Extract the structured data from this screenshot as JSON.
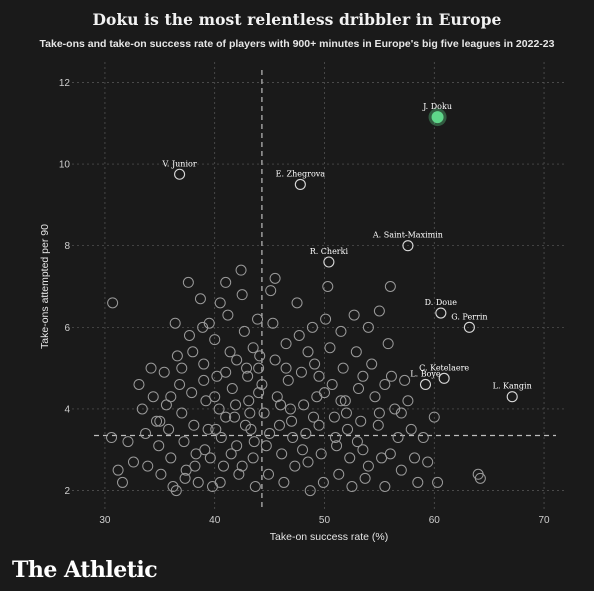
{
  "header": {
    "title": "Doku is the most relentless dribbler in Europe",
    "subtitle": "Take-ons and take-on success rate of players with 900+ minutes in Europe's big five leagues in 2022-23"
  },
  "brand": {
    "logo_text": "The Athletic"
  },
  "colors": {
    "background": "#1a1a1a",
    "highlight": "#5fd68a",
    "point_stroke": "#9a9a9a",
    "grid": "#5a5a5a",
    "reference_line": "#bdbdbd"
  },
  "chart_data": {
    "type": "scatter",
    "title": "Doku is the most relentless dribbler in Europe",
    "subtitle": "Take-ons and take-on success rate of players with 900+ minutes in Europe's big five leagues in 2022-23",
    "xlabel": "Take-on success rate (%)",
    "ylabel": "Take-ons attempted per 90",
    "xlim": [
      27,
      72
    ],
    "ylim": [
      1.5,
      12.5
    ],
    "xticks": [
      30,
      40,
      50,
      60,
      70
    ],
    "yticks": [
      2,
      4,
      6,
      8,
      10,
      12
    ],
    "grid": true,
    "reference_lines": {
      "x": 44.3,
      "y": 3.35
    },
    "labeled_points": [
      {
        "name": "J. Doku",
        "x": 60.3,
        "y": 11.15,
        "highlight": true
      },
      {
        "name": "V. Junior",
        "x": 36.8,
        "y": 9.75
      },
      {
        "name": "E. Zhegrova",
        "x": 47.8,
        "y": 9.5
      },
      {
        "name": "A. Saint-Maximin",
        "x": 57.6,
        "y": 8.0
      },
      {
        "name": "R. Cherki",
        "x": 50.4,
        "y": 7.6
      },
      {
        "name": "D. Doue",
        "x": 60.6,
        "y": 6.35
      },
      {
        "name": "G. Perrin",
        "x": 63.2,
        "y": 6.0
      },
      {
        "name": "C. Ketelaere",
        "x": 60.9,
        "y": 4.75
      },
      {
        "name": "L. Boye",
        "x": 59.2,
        "y": 4.6
      },
      {
        "name": "L. Kangin",
        "x": 67.1,
        "y": 4.3
      }
    ],
    "points": [
      [
        30.7,
        6.6
      ],
      [
        30.6,
        3.3
      ],
      [
        31.2,
        2.5
      ],
      [
        32.1,
        3.2
      ],
      [
        31.6,
        2.2
      ],
      [
        32.6,
        2.7
      ],
      [
        33.1,
        4.6
      ],
      [
        33.4,
        4.0
      ],
      [
        33.7,
        3.4
      ],
      [
        33.9,
        2.6
      ],
      [
        34.2,
        5.0
      ],
      [
        34.4,
        4.3
      ],
      [
        34.7,
        3.7
      ],
      [
        34.9,
        3.1
      ],
      [
        35.1,
        2.4
      ],
      [
        35.4,
        4.9
      ],
      [
        35.6,
        4.1
      ],
      [
        35.8,
        3.5
      ],
      [
        36.0,
        2.8
      ],
      [
        36.2,
        2.1
      ],
      [
        36.4,
        6.1
      ],
      [
        36.6,
        5.3
      ],
      [
        36.8,
        4.6
      ],
      [
        37.0,
        3.9
      ],
      [
        37.2,
        3.2
      ],
      [
        37.4,
        2.5
      ],
      [
        37.6,
        7.1
      ],
      [
        37.7,
        5.8
      ],
      [
        37.9,
        4.4
      ],
      [
        38.1,
        3.6
      ],
      [
        38.3,
        2.9
      ],
      [
        38.5,
        2.2
      ],
      [
        38.7,
        6.7
      ],
      [
        38.9,
        6.0
      ],
      [
        39.0,
        5.1
      ],
      [
        39.2,
        4.2
      ],
      [
        39.4,
        3.5
      ],
      [
        39.6,
        2.8
      ],
      [
        39.8,
        2.1
      ],
      [
        40.0,
        5.7
      ],
      [
        40.2,
        4.8
      ],
      [
        40.4,
        4.0
      ],
      [
        40.6,
        3.3
      ],
      [
        40.8,
        2.6
      ],
      [
        41.0,
        7.1
      ],
      [
        41.2,
        6.3
      ],
      [
        41.4,
        5.4
      ],
      [
        41.6,
        4.5
      ],
      [
        41.8,
        3.8
      ],
      [
        42.0,
        3.1
      ],
      [
        42.2,
        2.4
      ],
      [
        42.4,
        7.4
      ],
      [
        42.5,
        6.8
      ],
      [
        42.7,
        5.9
      ],
      [
        42.9,
        5.0
      ],
      [
        43.1,
        4.2
      ],
      [
        43.3,
        3.5
      ],
      [
        43.5,
        2.8
      ],
      [
        43.7,
        2.1
      ],
      [
        43.9,
        6.2
      ],
      [
        44.1,
        5.3
      ],
      [
        44.3,
        4.6
      ],
      [
        44.5,
        3.9
      ],
      [
        44.7,
        3.1
      ],
      [
        44.9,
        2.4
      ],
      [
        45.1,
        6.9
      ],
      [
        45.3,
        6.1
      ],
      [
        45.5,
        5.2
      ],
      [
        45.7,
        4.3
      ],
      [
        45.9,
        3.6
      ],
      [
        46.1,
        2.9
      ],
      [
        46.3,
        2.2
      ],
      [
        45.5,
        7.2
      ],
      [
        46.5,
        5.6
      ],
      [
        46.7,
        4.7
      ],
      [
        46.9,
        4.0
      ],
      [
        47.1,
        3.3
      ],
      [
        47.3,
        2.6
      ],
      [
        47.5,
        6.6
      ],
      [
        47.7,
        5.8
      ],
      [
        47.9,
        4.9
      ],
      [
        48.1,
        4.1
      ],
      [
        48.3,
        3.4
      ],
      [
        48.5,
        2.7
      ],
      [
        48.7,
        2.0
      ],
      [
        48.9,
        6.0
      ],
      [
        49.1,
        5.1
      ],
      [
        49.3,
        4.3
      ],
      [
        49.5,
        3.6
      ],
      [
        49.7,
        2.9
      ],
      [
        49.9,
        2.2
      ],
      [
        50.1,
        6.2
      ],
      [
        50.3,
        7.0
      ],
      [
        50.5,
        5.5
      ],
      [
        50.7,
        4.6
      ],
      [
        50.9,
        3.8
      ],
      [
        51.1,
        3.1
      ],
      [
        51.3,
        2.4
      ],
      [
        51.5,
        5.9
      ],
      [
        51.7,
        5.0
      ],
      [
        51.9,
        4.2
      ],
      [
        52.1,
        3.5
      ],
      [
        52.3,
        2.8
      ],
      [
        52.5,
        2.1
      ],
      [
        52.7,
        6.3
      ],
      [
        52.9,
        5.4
      ],
      [
        53.1,
        4.5
      ],
      [
        53.3,
        3.7
      ],
      [
        53.5,
        3.0
      ],
      [
        53.7,
        2.3
      ],
      [
        54.0,
        6.0
      ],
      [
        54.3,
        5.1
      ],
      [
        54.6,
        4.3
      ],
      [
        54.9,
        3.6
      ],
      [
        55.2,
        2.8
      ],
      [
        55.5,
        2.1
      ],
      [
        55.8,
        5.6
      ],
      [
        56.1,
        4.8
      ],
      [
        56.4,
        4.0
      ],
      [
        56.7,
        3.3
      ],
      [
        57.0,
        2.5
      ],
      [
        57.3,
        4.7
      ],
      [
        57.6,
        4.2
      ],
      [
        57.9,
        3.5
      ],
      [
        58.2,
        2.8
      ],
      [
        58.5,
        2.2
      ],
      [
        59.0,
        3.3
      ],
      [
        59.4,
        2.7
      ],
      [
        60.0,
        3.8
      ],
      [
        60.3,
        2.2
      ],
      [
        64.0,
        2.4
      ],
      [
        64.2,
        2.3
      ],
      [
        56.0,
        7.0
      ],
      [
        55.0,
        6.4
      ],
      [
        36.5,
        2.0
      ],
      [
        37.3,
        2.3
      ],
      [
        38.2,
        2.6
      ],
      [
        39.1,
        3.0
      ],
      [
        40.1,
        3.5
      ],
      [
        41.0,
        3.8
      ],
      [
        41.9,
        4.1
      ],
      [
        42.8,
        3.6
      ],
      [
        43.6,
        3.2
      ],
      [
        40.5,
        2.2
      ],
      [
        41.5,
        2.9
      ],
      [
        42.5,
        2.6
      ],
      [
        43.2,
        3.9
      ],
      [
        44.0,
        4.4
      ],
      [
        45.0,
        3.4
      ],
      [
        46.0,
        4.1
      ],
      [
        47.0,
        3.7
      ],
      [
        48.0,
        3.0
      ],
      [
        49.0,
        3.8
      ],
      [
        50.0,
        4.4
      ],
      [
        51.0,
        3.3
      ],
      [
        52.0,
        3.9
      ],
      [
        53.0,
        3.2
      ],
      [
        54.0,
        2.6
      ],
      [
        55.0,
        3.9
      ],
      [
        56.0,
        2.9
      ],
      [
        35.0,
        3.7
      ],
      [
        36.0,
        4.3
      ],
      [
        37.0,
        5.0
      ],
      [
        38.0,
        5.4
      ],
      [
        39.0,
        4.7
      ],
      [
        40.0,
        4.3
      ],
      [
        41.0,
        4.9
      ],
      [
        42.0,
        5.2
      ],
      [
        43.0,
        4.8
      ],
      [
        44.0,
        5.0
      ],
      [
        39.5,
        6.1
      ],
      [
        40.5,
        6.6
      ],
      [
        43.5,
        5.5
      ],
      [
        46.5,
        5.0
      ],
      [
        48.5,
        5.4
      ],
      [
        49.5,
        4.8
      ],
      [
        51.5,
        4.2
      ],
      [
        53.5,
        4.8
      ],
      [
        55.5,
        4.6
      ],
      [
        57.0,
        3.9
      ]
    ]
  }
}
